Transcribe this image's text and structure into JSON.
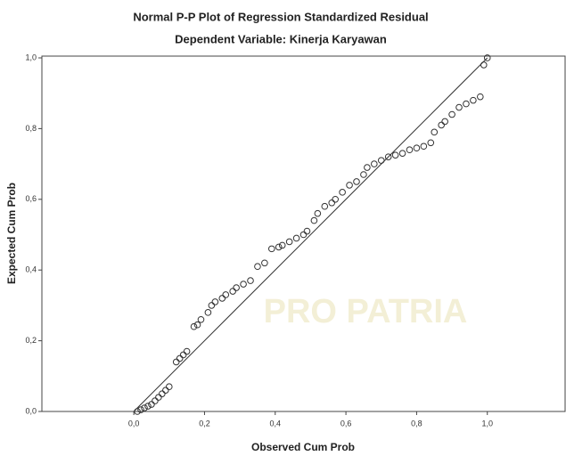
{
  "chart_data": {
    "type": "scatter",
    "title": "Normal P-P Plot of Regression Standardized Residual",
    "subtitle": "Dependent Variable: Kinerja Karyawan",
    "x_label": "Observed Cum Prob",
    "y_label": "Expected Cum Prob",
    "watermark": "PRO PATRIA",
    "color": "#333333",
    "xlim": [
      -0.26,
      1.22
    ],
    "ylim": [
      0,
      1.005
    ],
    "xticks": [
      {
        "value": 0,
        "label": "0,0"
      },
      {
        "value": 0.2,
        "label": "0,2"
      },
      {
        "value": 0.4,
        "label": "0,4"
      },
      {
        "value": 0.6,
        "label": "0,6"
      },
      {
        "value": 0.8,
        "label": "0,8"
      },
      {
        "value": 1,
        "label": "1,0"
      }
    ],
    "yticks": [
      {
        "value": 0,
        "label": "0,0"
      },
      {
        "value": 0.2,
        "label": "0,2"
      },
      {
        "value": 0.4,
        "label": "0,4"
      },
      {
        "value": 0.6,
        "label": "0,6"
      },
      {
        "value": 0.8,
        "label": "0,8"
      },
      {
        "value": 1,
        "label": "1,0"
      }
    ],
    "reference_line": {
      "x": [
        0,
        1
      ],
      "y": [
        0,
        1
      ]
    },
    "x": [
      0.01,
      0.02,
      0.03,
      0.04,
      0.05,
      0.06,
      0.07,
      0.08,
      0.09,
      0.1,
      0.12,
      0.13,
      0.14,
      0.15,
      0.17,
      0.18,
      0.19,
      0.21,
      0.22,
      0.23,
      0.25,
      0.26,
      0.28,
      0.29,
      0.31,
      0.33,
      0.35,
      0.37,
      0.39,
      0.41,
      0.42,
      0.44,
      0.46,
      0.48,
      0.49,
      0.51,
      0.52,
      0.54,
      0.56,
      0.57,
      0.59,
      0.61,
      0.63,
      0.65,
      0.66,
      0.68,
      0.7,
      0.72,
      0.74,
      0.76,
      0.78,
      0.8,
      0.82,
      0.84,
      0.85,
      0.87,
      0.88,
      0.9,
      0.92,
      0.94,
      0.96,
      0.98,
      0.99,
      1.0
    ],
    "values": [
      0,
      0.005,
      0.01,
      0.015,
      0.02,
      0.03,
      0.04,
      0.05,
      0.06,
      0.07,
      0.14,
      0.15,
      0.16,
      0.17,
      0.24,
      0.245,
      0.26,
      0.28,
      0.3,
      0.31,
      0.32,
      0.33,
      0.34,
      0.35,
      0.36,
      0.37,
      0.41,
      0.42,
      0.46,
      0.465,
      0.47,
      0.48,
      0.49,
      0.5,
      0.51,
      0.54,
      0.56,
      0.58,
      0.59,
      0.6,
      0.62,
      0.64,
      0.65,
      0.67,
      0.69,
      0.7,
      0.71,
      0.72,
      0.725,
      0.73,
      0.74,
      0.745,
      0.75,
      0.76,
      0.79,
      0.81,
      0.82,
      0.84,
      0.86,
      0.87,
      0.88,
      0.89,
      0.98,
      1.0
    ]
  }
}
